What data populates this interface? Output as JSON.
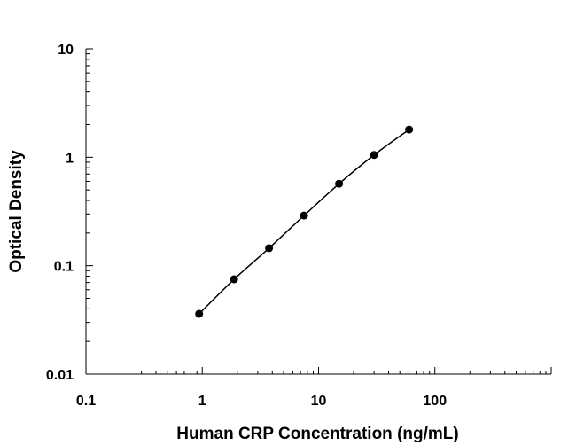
{
  "chart_data": {
    "type": "scatter",
    "x_scale": "log",
    "y_scale": "log",
    "xlabel": "Human CRP Concentration (ng/mL)",
    "ylabel": "Optical Density",
    "xlim": [
      0.1,
      1000
    ],
    "ylim": [
      0.01,
      10
    ],
    "x_ticks": [
      {
        "value": 0.1,
        "label": "0.1"
      },
      {
        "value": 1,
        "label": "1"
      },
      {
        "value": 10,
        "label": "10"
      },
      {
        "value": 100,
        "label": "100"
      }
    ],
    "y_ticks": [
      {
        "value": 0.01,
        "label": "0.01"
      },
      {
        "value": 0.1,
        "label": "0.1"
      },
      {
        "value": 1,
        "label": "1"
      },
      {
        "value": 10,
        "label": "10"
      }
    ],
    "grid": false,
    "series": [
      {
        "x": [
          0.94,
          1.88,
          3.75,
          7.5,
          15,
          30,
          60
        ],
        "y": [
          0.036,
          0.075,
          0.145,
          0.29,
          0.57,
          1.05,
          1.8
        ],
        "marker": "circle",
        "fit_line": true
      }
    ],
    "colors": {
      "marker": "#000000",
      "line": "#000000",
      "axis": "#000000"
    }
  }
}
